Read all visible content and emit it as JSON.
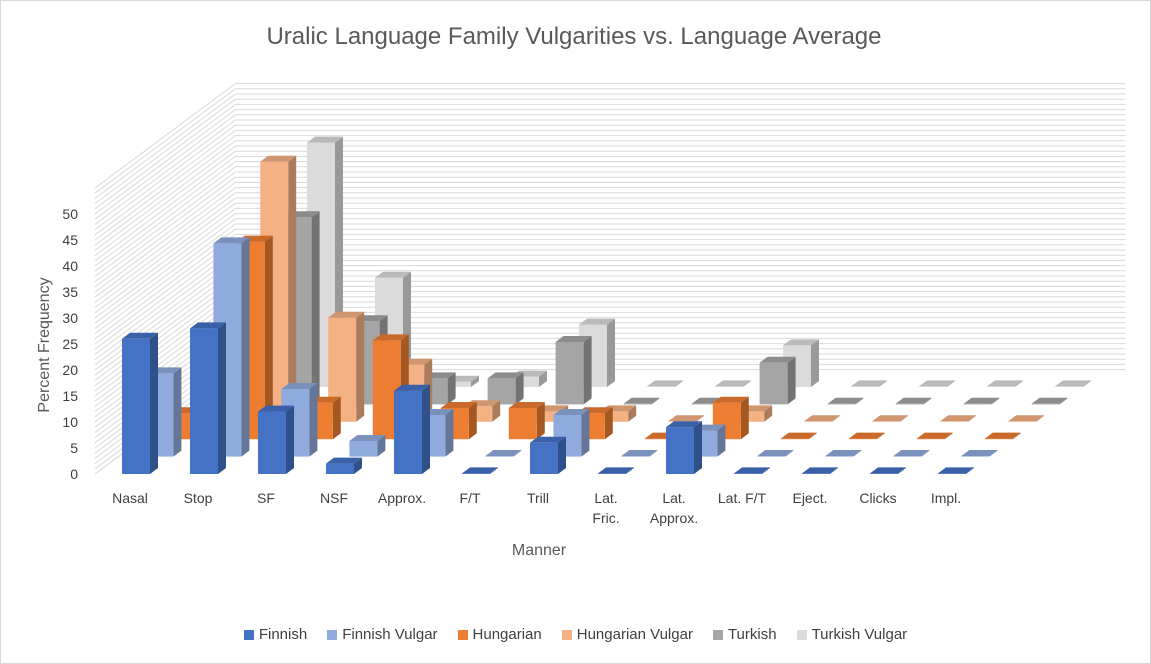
{
  "chart_data": {
    "type": "bar",
    "variant": "3d-column",
    "title": "Uralic Language Family Vulgarities vs. Language Average",
    "xlabel": "Manner",
    "ylabel": "Percent Frequency",
    "ylim": [
      0,
      50
    ],
    "yticks": [
      "0",
      "5",
      "10",
      "15",
      "20",
      "25",
      "30",
      "35",
      "40",
      "45",
      "50"
    ],
    "grid": true,
    "legend_position": "bottom",
    "categories": [
      [
        "Nasal"
      ],
      [
        "Stop"
      ],
      [
        "SF"
      ],
      [
        "NSF"
      ],
      [
        "Approx."
      ],
      [
        "F/T"
      ],
      [
        "Trill"
      ],
      [
        "Lat.",
        "Fric."
      ],
      [
        "Lat.",
        "Approx."
      ],
      [
        "Lat. F/T"
      ],
      [
        "Eject."
      ],
      [
        "Clicks"
      ],
      [
        "Impl."
      ]
    ],
    "series": [
      {
        "name": "Finnish",
        "color": "#4472c4",
        "values": [
          26,
          28,
          12,
          2,
          16,
          0,
          6,
          0,
          9,
          0,
          0,
          0,
          0
        ]
      },
      {
        "name": "Finnish Vulgar",
        "color": "#8faadc",
        "values": [
          16,
          41,
          13,
          3,
          8,
          0,
          8,
          0,
          5,
          0,
          0,
          0,
          0
        ]
      },
      {
        "name": "Hungarian",
        "color": "#ed7d31",
        "values": [
          5,
          38,
          7,
          19,
          6,
          6,
          5,
          0,
          7,
          0,
          0,
          0,
          0
        ]
      },
      {
        "name": "Hungarian Vulgar",
        "color": "#f4b183",
        "values": [
          5,
          50,
          20,
          11,
          3,
          2,
          2,
          0,
          2,
          0,
          0,
          0,
          0
        ]
      },
      {
        "name": "Turkish",
        "color": "#a5a5a5",
        "values": [
          7,
          36,
          16,
          5,
          5,
          12,
          0,
          0,
          8,
          0,
          0,
          0,
          0
        ]
      },
      {
        "name": "Turkish Vulgar",
        "color": "#dbdbdb",
        "values": [
          9,
          47,
          21,
          1,
          2,
          12,
          0,
          0,
          8,
          0,
          0,
          0,
          0
        ]
      }
    ]
  }
}
